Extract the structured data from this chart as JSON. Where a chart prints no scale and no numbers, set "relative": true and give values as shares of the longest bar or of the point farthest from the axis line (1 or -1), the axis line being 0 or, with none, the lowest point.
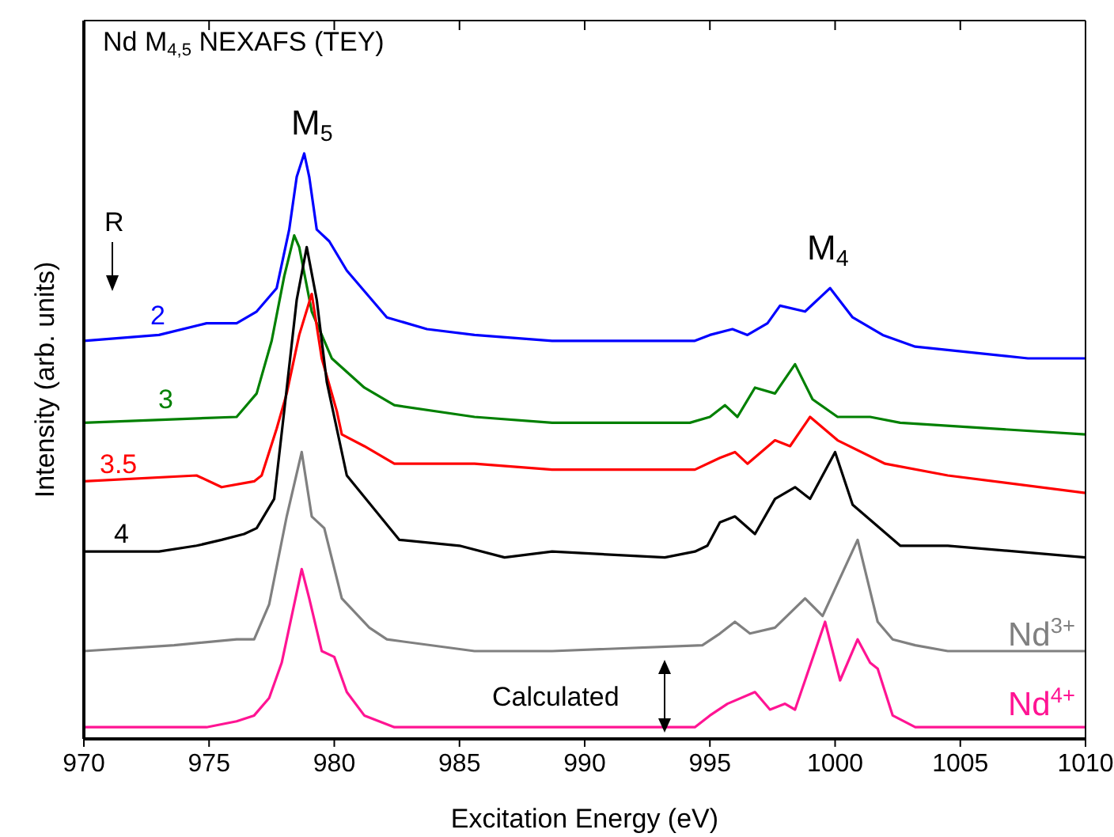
{
  "chart_data": {
    "type": "line",
    "title": "Nd M$_{4,5}$ NEXAFS (TEY)",
    "xlabel": "Excitation Energy (eV)",
    "ylabel": "Intensity (arb. units)",
    "relative": true,
    "xlim": [
      970,
      1010
    ],
    "xticks": [
      970,
      975,
      980,
      985,
      990,
      995,
      1000,
      1005,
      1010
    ],
    "marker": "none",
    "line_style": "solid",
    "annotations": [
      "M$_{5}$",
      "M$_{4}$",
      "R",
      "Calculated"
    ],
    "series": [
      {
        "name": "2",
        "color": "#0000ff",
        "x": [
          970,
          973,
          974.9,
          976.1,
          976.9,
          977.7,
          978.2,
          978.5,
          978.8,
          979.0,
          979.3,
          979.8,
          980.5,
          982.1,
          983.7,
          985.6,
          988.7,
          993.8,
          994.4,
          995.0,
          995.9,
          996.5,
          997.3,
          997.8,
          998.8,
          999.8,
          1000.7,
          1001.9,
          1003.2,
          1007.7,
          1010
        ],
        "values": [
          0.68,
          0.69,
          0.71,
          0.71,
          0.73,
          0.77,
          0.87,
          0.96,
          1.0,
          0.96,
          0.87,
          0.85,
          0.8,
          0.72,
          0.7,
          0.69,
          0.68,
          0.68,
          0.68,
          0.69,
          0.7,
          0.69,
          0.71,
          0.74,
          0.73,
          0.77,
          0.72,
          0.69,
          0.67,
          0.65,
          0.65
        ]
      },
      {
        "name": "3",
        "color": "#008000",
        "x": [
          970,
          976.1,
          976.9,
          977.5,
          978.0,
          978.4,
          978.6,
          979.1,
          979.9,
          981.2,
          982.4,
          985.6,
          988.7,
          994.2,
          995.0,
          995.6,
          996.1,
          996.8,
          997.6,
          998.4,
          999.1,
          1000.1,
          1001.4,
          1002.6,
          1010
        ],
        "values": [
          0.54,
          0.55,
          0.59,
          0.68,
          0.79,
          0.86,
          0.84,
          0.73,
          0.65,
          0.6,
          0.57,
          0.55,
          0.54,
          0.54,
          0.55,
          0.57,
          0.55,
          0.6,
          0.59,
          0.64,
          0.58,
          0.55,
          0.55,
          0.54,
          0.52
        ]
      },
      {
        "name": "3.5",
        "color": "#ff0000",
        "x": [
          970,
          974.5,
          975.5,
          976.8,
          977.1,
          977.7,
          978.1,
          978.6,
          979.1,
          979.5,
          979.7,
          980.1,
          980.3,
          981.2,
          982.4,
          985.6,
          988.7,
          994.4,
          995.4,
          996.0,
          996.5,
          997.6,
          998.2,
          999.0,
          1000.1,
          1002.0,
          1004.5,
          1010
        ],
        "values": [
          0.44,
          0.45,
          0.43,
          0.44,
          0.45,
          0.53,
          0.59,
          0.69,
          0.76,
          0.65,
          0.62,
          0.56,
          0.52,
          0.5,
          0.47,
          0.47,
          0.46,
          0.46,
          0.48,
          0.49,
          0.47,
          0.51,
          0.5,
          0.55,
          0.51,
          0.47,
          0.45,
          0.42
        ]
      },
      {
        "name": "4",
        "color": "#000000",
        "x": [
          970,
          973,
          974.5,
          975.5,
          976.4,
          976.9,
          977.6,
          978.0,
          978.5,
          978.9,
          979.3,
          979.7,
          980.5,
          982.6,
          985.0,
          986.8,
          988.7,
          993.2,
          994.4,
          994.9,
          995.4,
          996.0,
          996.8,
          997.6,
          998.4,
          999.0,
          1000.0,
          1000.7,
          1002.6,
          1004.5,
          1010
        ],
        "values": [
          0.32,
          0.32,
          0.33,
          0.34,
          0.35,
          0.36,
          0.41,
          0.56,
          0.75,
          0.84,
          0.75,
          0.61,
          0.45,
          0.34,
          0.33,
          0.31,
          0.32,
          0.31,
          0.32,
          0.33,
          0.37,
          0.38,
          0.35,
          0.41,
          0.43,
          0.41,
          0.49,
          0.4,
          0.33,
          0.33,
          0.31
        ]
      },
      {
        "name": "Nd$^{3+}$",
        "color": "#808080",
        "x": [
          970,
          973.6,
          976.1,
          976.8,
          977.4,
          978.1,
          978.7,
          979.1,
          979.6,
          980.3,
          981.4,
          982.1,
          985.6,
          988.7,
          994.7,
          995.4,
          996.0,
          996.6,
          997.6,
          998.8,
          999.5,
          1000.9,
          1001.7,
          1002.3,
          1003.2,
          1004.5,
          1010
        ],
        "values": [
          0.15,
          0.16,
          0.17,
          0.17,
          0.23,
          0.38,
          0.49,
          0.38,
          0.36,
          0.24,
          0.19,
          0.17,
          0.15,
          0.15,
          0.16,
          0.18,
          0.2,
          0.18,
          0.19,
          0.24,
          0.21,
          0.34,
          0.2,
          0.17,
          0.16,
          0.15,
          0.15
        ]
      },
      {
        "name": "Nd$^{4+}$",
        "color": "#ff1493",
        "x": [
          970,
          974.9,
          976.1,
          976.8,
          977.4,
          977.9,
          978.7,
          979.0,
          979.5,
          980.0,
          980.5,
          981.2,
          982.4,
          985.6,
          994.4,
          995.0,
          995.7,
          996.8,
          997.4,
          998.0,
          998.4,
          999.6,
          1000.2,
          1000.9,
          1001.4,
          1001.7,
          1002.3,
          1003.2,
          1010
        ],
        "values": [
          0.02,
          0.02,
          0.03,
          0.04,
          0.07,
          0.13,
          0.29,
          0.24,
          0.15,
          0.14,
          0.08,
          0.04,
          0.02,
          0.02,
          0.02,
          0.04,
          0.06,
          0.08,
          0.05,
          0.06,
          0.05,
          0.2,
          0.1,
          0.17,
          0.13,
          0.12,
          0.04,
          0.02,
          0.02
        ]
      }
    ]
  }
}
